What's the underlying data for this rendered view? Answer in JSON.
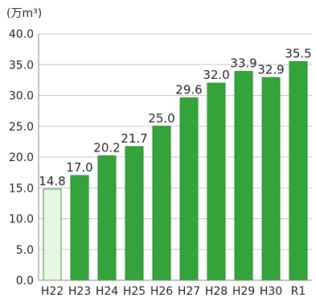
{
  "chart_data": {
    "type": "bar",
    "unit_label": "(万m³)",
    "categories": [
      "H22",
      "H23",
      "H24",
      "H25",
      "H26",
      "H27",
      "H28",
      "H29",
      "H30",
      "R1"
    ],
    "values": [
      14.8,
      17.0,
      20.2,
      21.7,
      25.0,
      29.6,
      32.0,
      33.9,
      32.9,
      35.5
    ],
    "value_labels": [
      "14.8",
      "17.0",
      "20.2",
      "21.7",
      "25.0",
      "29.6",
      "32.0",
      "33.9",
      "32.9",
      "35.5"
    ],
    "ylim": [
      0,
      40
    ],
    "yticks": [
      0,
      5,
      10,
      15,
      20,
      25,
      30,
      35,
      40
    ],
    "ytick_labels": [
      "0.0",
      "5.0",
      "10.0",
      "15.0",
      "20.0",
      "25.0",
      "30.0",
      "35.0",
      "40.0"
    ],
    "grid": true,
    "colors": {
      "bar": "#33a33a",
      "bar_stroke": "#2a8a30",
      "first_bar": "#e6f8df",
      "first_bar_stroke": "#4a8a46",
      "grid": "#c8c8c8",
      "axis": "#888888"
    },
    "xlabel": "",
    "ylabel": ""
  }
}
